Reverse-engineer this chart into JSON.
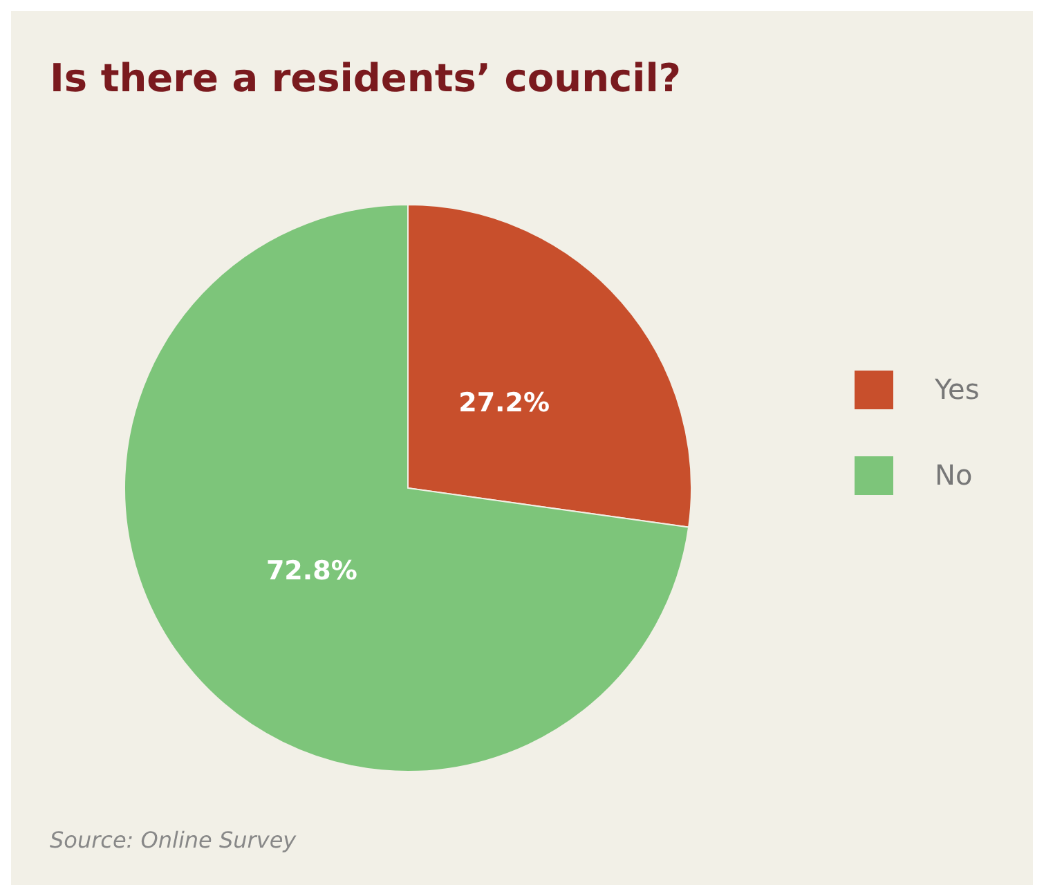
{
  "chart_data": {
    "type": "pie",
    "title": "Is there a residents’ council?",
    "categories": [
      "Yes",
      "No"
    ],
    "values": [
      27.2,
      72.8
    ],
    "colors": [
      "#c84f2c",
      "#7dc57a"
    ],
    "value_labels": [
      "27.2%",
      "72.8%"
    ],
    "legend": "right",
    "annotations": [
      "Source: Online Survey"
    ]
  }
}
